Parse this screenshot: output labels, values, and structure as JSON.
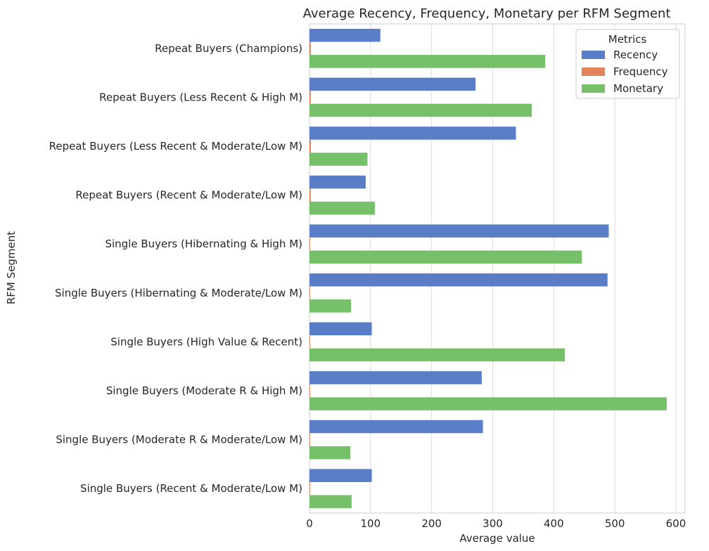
{
  "chart_data": {
    "type": "bar",
    "orientation": "horizontal",
    "title": "Average Recency, Frequency, Monetary per RFM Segment",
    "xlabel": "Average value",
    "ylabel": "RFM Segment",
    "xlim": [
      0,
      615
    ],
    "xticks": [
      0,
      100,
      200,
      300,
      400,
      500,
      600
    ],
    "grid": true,
    "legend": {
      "title": "Metrics",
      "placement": "top-right"
    },
    "categories": [
      "Repeat Buyers (Champions)",
      "Repeat Buyers (Less Recent & High M)",
      "Repeat Buyers (Less Recent & Moderate/Low M)",
      "Repeat Buyers (Recent & Moderate/Low M)",
      "Single Buyers (Hibernating & High M)",
      "Single Buyers (Hibernating & Moderate/Low M)",
      "Single Buyers (High Value & Recent)",
      "Single Buyers (Moderate R & High M)",
      "Single Buyers (Moderate R & Moderate/Low M)",
      "Single Buyers (Recent & Moderate/Low M)"
    ],
    "series": [
      {
        "name": "Recency",
        "color": "#5a7dc8",
        "values": [
          116,
          272,
          338,
          92,
          490,
          488,
          102,
          282,
          284,
          102
        ]
      },
      {
        "name": "Frequency",
        "color": "#e1845a",
        "values": [
          2.2,
          2.1,
          2.3,
          2.1,
          1,
          1,
          1,
          1,
          1,
          1
        ]
      },
      {
        "name": "Monetary",
        "color": "#77c06a",
        "values": [
          386,
          364,
          95,
          107,
          446,
          68,
          418,
          585,
          67,
          69
        ]
      }
    ]
  }
}
